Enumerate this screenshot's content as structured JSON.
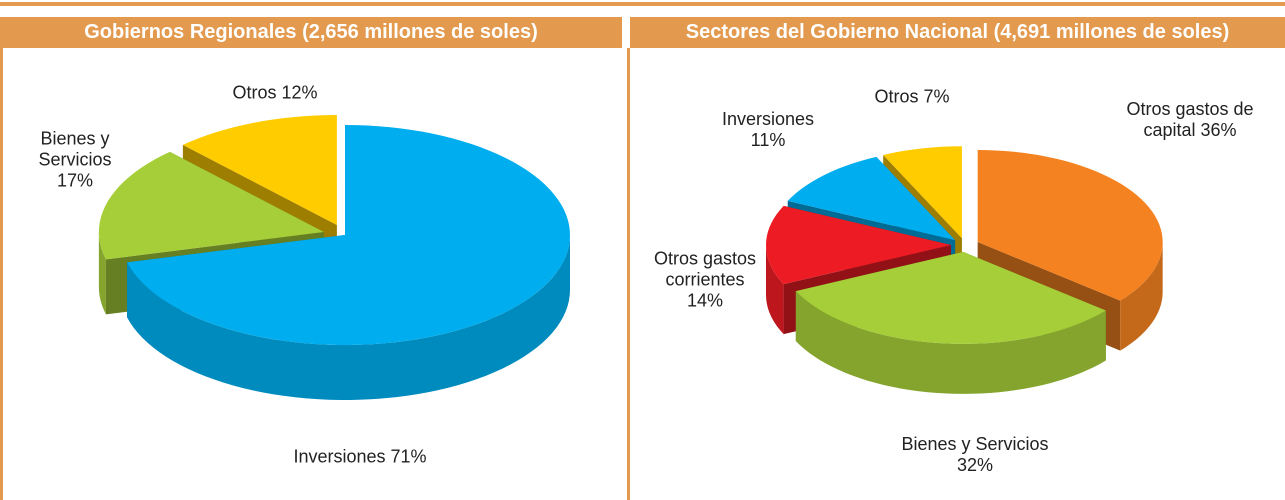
{
  "chart_data": [
    {
      "type": "pie",
      "title": "Gobiernos Regionales (2,656 millones de soles)",
      "categories": [
        "Inversiones",
        "Bienes y Servicios",
        "Otros"
      ],
      "values": [
        71,
        17,
        12
      ],
      "value_labels": [
        "71%",
        "17%",
        "12%"
      ],
      "colors": [
        "#00aeef",
        "#a6ce39",
        "#ffcc00"
      ]
    },
    {
      "type": "pie",
      "title": "Sectores del Gobierno Nacional (4,691 millones de soles)",
      "categories": [
        "Otros gastos de capital",
        "Bienes y Servicios",
        "Otros gastos corrientes",
        "Inversiones",
        "Otros"
      ],
      "values": [
        36,
        32,
        14,
        11,
        7
      ],
      "value_labels": [
        "36%",
        "32%",
        "14%",
        "11%",
        "7%"
      ],
      "colors": [
        "#f58220",
        "#a6ce39",
        "#ed1c24",
        "#00aeef",
        "#ffcc00"
      ]
    }
  ]
}
